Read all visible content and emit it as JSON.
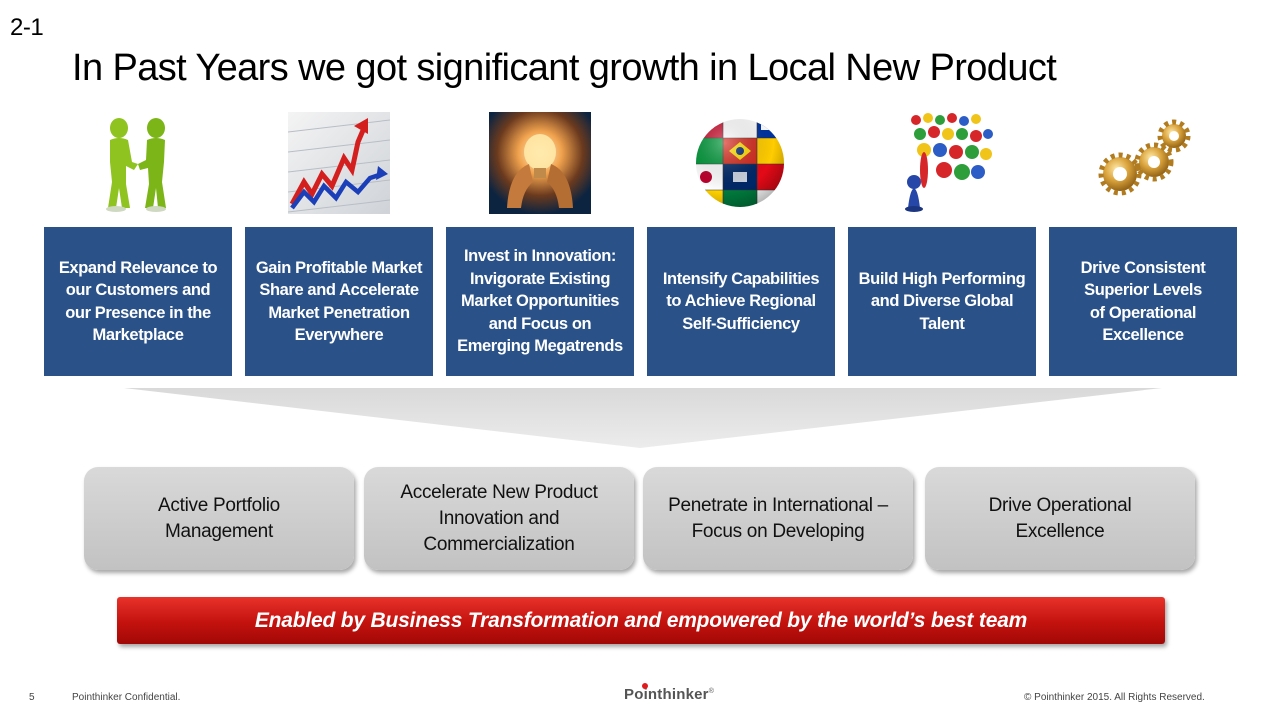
{
  "slide": {
    "label": "2-1",
    "title": "In Past Years we got significant growth in Local New Product"
  },
  "icons": [
    {
      "name": "handshake-figures-icon"
    },
    {
      "name": "rising-chart-icon"
    },
    {
      "name": "lightbulb-hands-icon"
    },
    {
      "name": "flag-globe-icon"
    },
    {
      "name": "crowd-pawns-icon"
    },
    {
      "name": "gears-icon"
    }
  ],
  "pillars": [
    {
      "lines": [
        "Expand Relevance to",
        "our Customers and",
        "our Presence in the",
        "Marketplace"
      ]
    },
    {
      "lines": [
        "Gain Profitable Market",
        "Share and Accelerate",
        "Market Penetration",
        "Everywhere"
      ]
    },
    {
      "lines": [
        "Invest in Innovation:",
        "Invigorate Existing",
        "Market Opportunities",
        "and Focus on",
        "Emerging Megatrends"
      ]
    },
    {
      "lines": [
        "Intensify Capabilities",
        "to Achieve Regional",
        "Self-Sufficiency"
      ]
    },
    {
      "lines": [
        "Build High Performing",
        "and Diverse Global",
        "Talent"
      ]
    },
    {
      "lines": [
        "Drive Consistent",
        "Superior Levels",
        "of Operational",
        "Excellence"
      ]
    }
  ],
  "strategies": [
    {
      "lines": [
        "Active Portfolio",
        "Management"
      ]
    },
    {
      "lines": [
        "Accelerate New Product",
        "Innovation and",
        "Commercialization"
      ]
    },
    {
      "lines": [
        "Penetrate in International –",
        "Focus on Developing"
      ]
    },
    {
      "lines": [
        "Drive Operational",
        "Excellence"
      ]
    }
  ],
  "banner": {
    "text": "Enabled by Business Transformation and empowered by the world’s best team"
  },
  "footer": {
    "page_number": "5",
    "confidential": "Pointhinker Confidential.",
    "logo": "Pointhinker",
    "logo_mark": "®",
    "copyright": "© Pointhinker  2015. All Rights Reserved."
  },
  "colors": {
    "pillar_bg": "#2a5289",
    "banner_red": "#c3120e",
    "strategy_gray": "#cfcfcf"
  }
}
